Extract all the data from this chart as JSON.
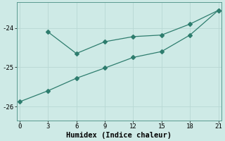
{
  "xlabel": "Humidex (Indice chaleur)",
  "bg_color": "#ceeae6",
  "line_color": "#2e7d6e",
  "grid_color": "#b8d8d4",
  "series1_x": [
    3,
    6,
    9,
    12,
    15,
    18,
    21
  ],
  "series1_y": [
    -24.1,
    -24.65,
    -24.35,
    -24.22,
    -24.18,
    -23.9,
    -23.55
  ],
  "series2_x": [
    0,
    3,
    6,
    9,
    12,
    15,
    18,
    21
  ],
  "series2_y": [
    -25.88,
    -25.6,
    -25.28,
    -25.02,
    -24.75,
    -24.6,
    -24.18,
    -23.55
  ],
  "xlim": [
    -0.3,
    21.3
  ],
  "ylim": [
    -26.35,
    -23.35
  ],
  "xticks": [
    0,
    3,
    6,
    9,
    12,
    15,
    18,
    21
  ],
  "yticks": [
    -26,
    -25,
    -24
  ],
  "markersize": 3,
  "linewidth": 0.9,
  "tick_fontsize": 6.5,
  "xlabel_fontsize": 7.5
}
